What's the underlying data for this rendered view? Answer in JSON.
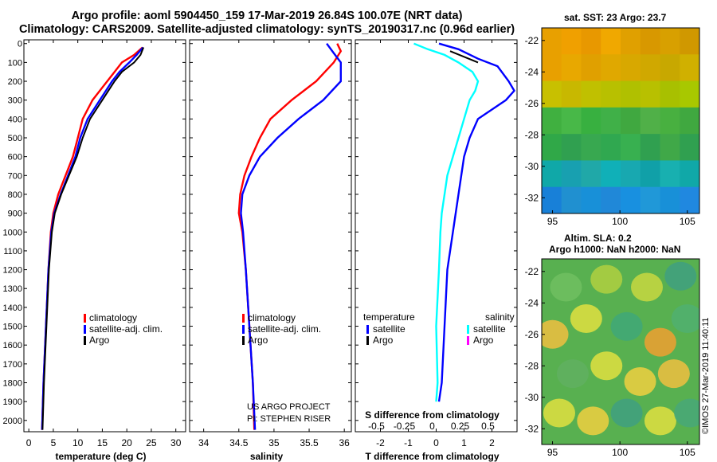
{
  "header": {
    "line1": "Argo profile: aoml 5904450_159 17-Mar-2019 26.84S 100.07E (NRT data)",
    "line2": "Climatology: CARS2009. Satellite-adjusted climatology: synTS_20190317.nc (0.96d earlier)"
  },
  "colors": {
    "climatology": "#ff0000",
    "satellite": "#0000ff",
    "argo": "#000000",
    "sal_satellite": "#00ffff",
    "sal_argo": "#ff00ff"
  },
  "depth_axis": {
    "ticks": [
      "0",
      "100",
      "200",
      "300",
      "400",
      "500",
      "600",
      "700",
      "800",
      "900",
      "1000",
      "1100",
      "1200",
      "1300",
      "1400",
      "1500",
      "1600",
      "1700",
      "1800",
      "1900",
      "2000"
    ]
  },
  "chart_data": [
    {
      "type": "line",
      "name": "temperature-profile",
      "xlabel": "temperature (deg C)",
      "xlim": [
        -1,
        32
      ],
      "ylim": [
        2060,
        -20
      ],
      "xticks": [
        "0",
        "5",
        "10",
        "15",
        "20",
        "25",
        "30"
      ],
      "xtick_values": [
        0,
        5,
        10,
        15,
        20,
        25,
        30
      ],
      "legend": [
        "climatology",
        "satellite-adj. clim.",
        "Argo"
      ],
      "series": [
        {
          "name": "climatology",
          "color": "#ff0000",
          "depth": [
            20,
            60,
            100,
            150,
            200,
            300,
            400,
            500,
            600,
            700,
            800,
            900,
            1000,
            1200,
            1500,
            1800,
            2050
          ],
          "values": [
            23.2,
            21.5,
            19.0,
            17.5,
            16.0,
            13.0,
            11.0,
            10.0,
            9.0,
            7.5,
            6.0,
            5.0,
            4.5,
            4.0,
            3.5,
            3.0,
            2.7
          ]
        },
        {
          "name": "satellite-adj. clim.",
          "color": "#0000ff",
          "depth": [
            20,
            60,
            100,
            150,
            200,
            300,
            400,
            500,
            600,
            700,
            800,
            900,
            1000,
            1200,
            1500,
            1800,
            2050
          ],
          "values": [
            23.3,
            22.0,
            20.5,
            18.5,
            17.0,
            14.5,
            12.0,
            10.5,
            9.5,
            8.0,
            6.5,
            5.2,
            4.6,
            4.0,
            3.5,
            3.0,
            2.7
          ]
        },
        {
          "name": "Argo",
          "color": "#000000",
          "depth": [
            20,
            60,
            100,
            150,
            200,
            300,
            400,
            500,
            600,
            700,
            800,
            900,
            1000,
            1200,
            1500,
            1800,
            2050
          ],
          "values": [
            23.4,
            22.8,
            21.5,
            19.0,
            17.5,
            15.0,
            12.5,
            11.0,
            9.8,
            8.2,
            6.6,
            5.3,
            4.7,
            4.1,
            3.6,
            3.1,
            2.8
          ]
        }
      ]
    },
    {
      "type": "line",
      "name": "salinity-profile",
      "xlabel": "salinity",
      "xlim": [
        33.8,
        36.1
      ],
      "ylim": [
        2060,
        -20
      ],
      "xticks": [
        "34",
        "34.5",
        "35",
        "35.5",
        "36"
      ],
      "xtick_values": [
        34,
        34.5,
        35,
        35.5,
        36
      ],
      "legend": [
        "climatology",
        "satellite-adj. clim.",
        "Argo"
      ],
      "annotation": [
        "US ARGO PROJECT",
        "PI: STEPHEN RISER"
      ],
      "series": [
        {
          "name": "climatology",
          "color": "#ff0000",
          "depth": [
            0,
            40,
            100,
            200,
            300,
            400,
            500,
            600,
            700,
            800,
            900,
            1000,
            1200,
            1500,
            1800,
            2050
          ],
          "values": [
            35.9,
            35.95,
            35.85,
            35.6,
            35.25,
            34.95,
            34.8,
            34.68,
            34.58,
            34.52,
            34.5,
            34.55,
            34.6,
            34.65,
            34.7,
            34.72
          ]
        },
        {
          "name": "satellite-adj. clim.",
          "color": "#0000ff",
          "depth": [
            0,
            50,
            100,
            200,
            300,
            400,
            500,
            600,
            700,
            800,
            900,
            1000,
            1200,
            1500,
            1800,
            2050
          ],
          "values": [
            35.75,
            35.85,
            35.95,
            35.95,
            35.7,
            35.35,
            35.05,
            34.8,
            34.65,
            34.55,
            34.53,
            34.56,
            34.6,
            34.65,
            34.7,
            34.73
          ]
        }
      ]
    },
    {
      "type": "line",
      "name": "difference-profile",
      "xlabel": "T difference from climatology",
      "x2label": "S difference from climatology",
      "xlim": [
        -2.9,
        2.9
      ],
      "ylim": [
        2060,
        -20
      ],
      "xticks": [
        "-2",
        "-1",
        "0",
        "1",
        "2"
      ],
      "xtick_values": [
        -2,
        -1,
        0,
        1,
        2
      ],
      "x2ticks": [
        "-0.5",
        "-0.25",
        "0",
        "0.25",
        "0.5"
      ],
      "x2tick_values": [
        -2,
        -1,
        0,
        1,
        2
      ],
      "legend_left": {
        "title": "temperature",
        "items": [
          "satellite",
          "Argo"
        ]
      },
      "legend_right": {
        "title": "salinity",
        "items": [
          "satellite",
          "Argo"
        ]
      },
      "series": [
        {
          "name": "T satellite",
          "color": "#0000ff",
          "depth": [
            0,
            30,
            80,
            120,
            200,
            250,
            300,
            400,
            500,
            600,
            700,
            800,
            900,
            1000,
            1200,
            1500,
            1800,
            1900
          ],
          "values": [
            0.1,
            0.8,
            1.5,
            2.2,
            2.6,
            2.8,
            2.5,
            1.5,
            1.2,
            1.0,
            0.9,
            0.8,
            0.7,
            0.6,
            0.4,
            0.3,
            0.2,
            0.1
          ]
        },
        {
          "name": "T Argo",
          "color": "#000000",
          "depth": [
            40,
            70,
            100
          ],
          "values": [
            0.5,
            1.0,
            1.5
          ]
        },
        {
          "name": "S satellite",
          "color": "#00ffff",
          "depth": [
            0,
            30,
            60,
            100,
            150,
            200,
            250,
            300,
            400,
            500,
            600,
            700,
            800,
            900,
            1000,
            1200,
            1500,
            1800,
            1900
          ],
          "values": [
            -0.8,
            -0.3,
            0.3,
            0.8,
            1.3,
            1.5,
            1.4,
            1.2,
            1.0,
            0.8,
            0.6,
            0.4,
            0.3,
            0.2,
            0.15,
            0.1,
            0.0,
            0.05,
            0.0
          ]
        }
      ]
    }
  ],
  "map_sst": {
    "title": "sat. SST: 23 Argo: 23.7",
    "xticks": [
      "95",
      "100",
      "105"
    ],
    "yticks": [
      "-22",
      "-24",
      "-26",
      "-28",
      "-30",
      "-32"
    ],
    "xtick_values": [
      95,
      100,
      105
    ],
    "ytick_values": [
      -22,
      -24,
      -26,
      -28,
      -30,
      -32
    ],
    "lon_range": [
      94.2,
      105.9
    ],
    "lat_range": [
      -33.0,
      -21.2
    ],
    "rows": [
      [
        "#e8a000",
        "#f0a000",
        "#e89800",
        "#f0a800",
        "#e0a000",
        "#d89800",
        "#d8a000",
        "#d09800"
      ],
      [
        "#e8a000",
        "#e8a800",
        "#e0a000",
        "#e0a800",
        "#d8a800",
        "#d0a800",
        "#c8a800",
        "#d0b000"
      ],
      [
        "#c8c000",
        "#c8b800",
        "#c0c000",
        "#b8c000",
        "#b0c000",
        "#b8c000",
        "#a8c000",
        "#a8c800"
      ],
      [
        "#40b040",
        "#48b848",
        "#38b040",
        "#40b048",
        "#40a840",
        "#50b048",
        "#48b040",
        "#40a840"
      ],
      [
        "#30a848",
        "#30a050",
        "#38a850",
        "#30a850",
        "#38b050",
        "#30a050",
        "#40a848",
        "#30a050"
      ],
      [
        "#10a8a8",
        "#18a0b0",
        "#20a8a8",
        "#10b0b8",
        "#18a8b0",
        "#10a0a8",
        "#18b0b0",
        "#10a8a8"
      ],
      [
        "#1880d8",
        "#2090d0",
        "#1890d8",
        "#2088d8",
        "#1890e0",
        "#2098d8",
        "#1890d8",
        "#2088e0"
      ]
    ]
  },
  "map_sla": {
    "title1": "Altim. SLA: 0.2",
    "title2": "Argo h1000: NaN h2000: NaN",
    "xticks": [
      "95",
      "100",
      "105"
    ],
    "yticks": [
      "-22",
      "-24",
      "-26",
      "-28",
      "-30",
      "-32"
    ],
    "xtick_values": [
      95,
      100,
      105
    ],
    "ytick_values": [
      -22,
      -24,
      -26,
      -28,
      -30,
      -32
    ],
    "lon_range": [
      94.2,
      105.9
    ],
    "lat_range": [
      -33.0,
      -21.2
    ],
    "blobs": [
      {
        "lon": 96,
        "lat": -23,
        "c": "#70c060"
      },
      {
        "lon": 99,
        "lat": -22.5,
        "c": "#b0d040"
      },
      {
        "lon": 102,
        "lat": -23,
        "c": "#c8d840"
      },
      {
        "lon": 104.5,
        "lat": -22.3,
        "c": "#40a080"
      },
      {
        "lon": 95,
        "lat": -26,
        "c": "#f0c040"
      },
      {
        "lon": 97.5,
        "lat": -25,
        "c": "#e0e040"
      },
      {
        "lon": 100.5,
        "lat": -25.5,
        "c": "#40a878"
      },
      {
        "lon": 103,
        "lat": -26.5,
        "c": "#f0a030"
      },
      {
        "lon": 105,
        "lat": -25,
        "c": "#50b070"
      },
      {
        "lon": 96.5,
        "lat": -28.5,
        "c": "#60b060"
      },
      {
        "lon": 99,
        "lat": -28,
        "c": "#e0e040"
      },
      {
        "lon": 101.5,
        "lat": -29,
        "c": "#f0d040"
      },
      {
        "lon": 104,
        "lat": -28.5,
        "c": "#f0c040"
      },
      {
        "lon": 95.5,
        "lat": -31,
        "c": "#e0e040"
      },
      {
        "lon": 98,
        "lat": -31.5,
        "c": "#f0d040"
      },
      {
        "lon": 100.5,
        "lat": -31,
        "c": "#40a080"
      },
      {
        "lon": 103,
        "lat": -31.5,
        "c": "#e0e040"
      },
      {
        "lon": 105.2,
        "lat": -31,
        "c": "#48a878"
      }
    ]
  },
  "footer": {
    "stamp": "©IMOS 27-Mar-2019 11:40:11"
  }
}
